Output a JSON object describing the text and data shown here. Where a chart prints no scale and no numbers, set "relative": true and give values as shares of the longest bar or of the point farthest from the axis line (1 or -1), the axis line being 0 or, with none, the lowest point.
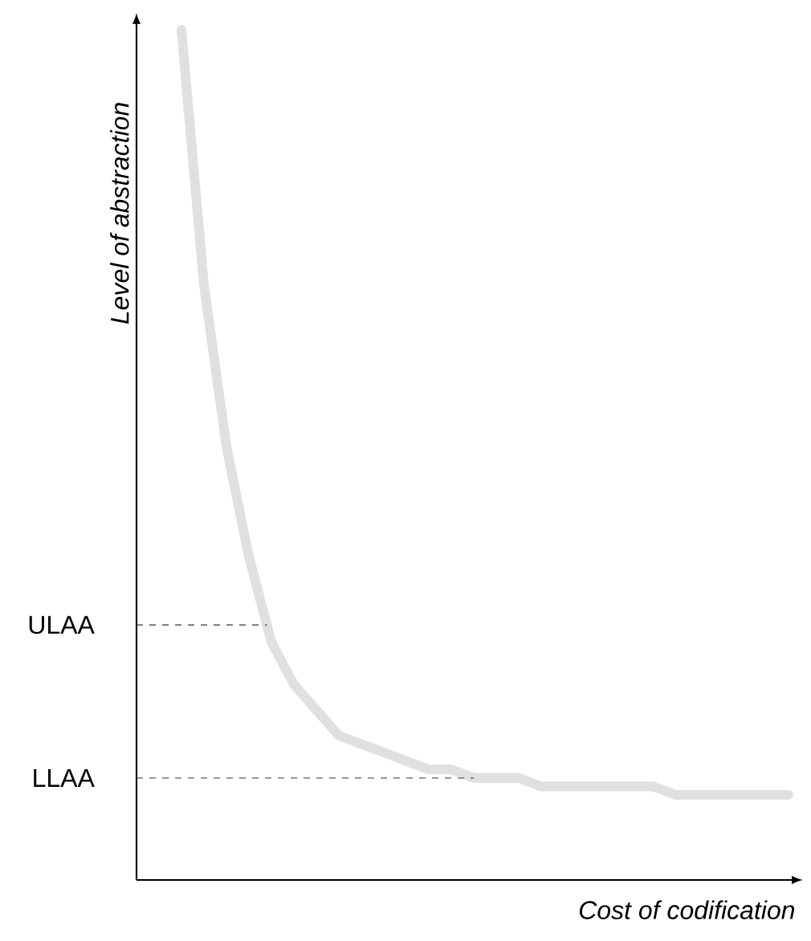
{
  "chart_data": {
    "type": "line",
    "relative": true,
    "xlabel": "Cost of codification",
    "ylabel": "Level of abstraction",
    "categories": [
      null,
      null,
      null,
      null,
      null,
      null,
      null,
      null,
      null,
      null,
      null,
      null,
      null,
      null,
      null,
      null,
      null,
      null,
      null,
      null,
      null,
      null,
      null,
      null,
      null,
      null,
      null,
      null,
      null,
      null
    ],
    "series": [
      {
        "color": "#e0e0e0",
        "values": [
          null,
          null,
          1.0,
          0.7,
          0.51,
          0.38,
          0.28,
          0.23,
          0.2,
          0.17,
          0.16,
          0.15,
          0.14,
          0.13,
          0.13,
          0.12,
          0.12,
          0.12,
          0.11,
          0.11,
          0.11,
          0.11,
          0.11,
          0.11,
          0.1,
          0.1,
          0.1,
          0.1,
          0.1,
          0.1
        ]
      }
    ],
    "ref_lines": [
      {
        "axis": "y",
        "value": 0.3,
        "label": "ULAA",
        "color": "#333333",
        "line_style": "dashed"
      },
      {
        "axis": "y",
        "value": 0.12,
        "label": "LLAA",
        "color": "#333333",
        "line_style": "dashed"
      }
    ],
    "marker": "none",
    "line_style": "solid"
  }
}
